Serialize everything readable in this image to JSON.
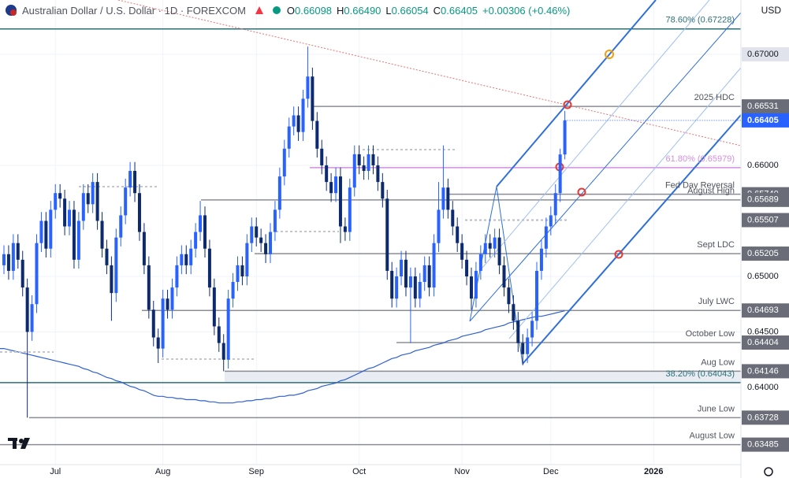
{
  "chart_data": {
    "type": "candlestick",
    "header": {
      "title": "Australian Dollar / U.S. Dollar · 1D · FOREXCOM",
      "ohlc": [
        {
          "key": "O",
          "value": "0.66098"
        },
        {
          "key": "H",
          "value": "0.66490"
        },
        {
          "key": "L",
          "value": "0.66054"
        },
        {
          "key": "C",
          "value": "0.66405"
        }
      ],
      "change": "+0.00306 (+0.46%)"
    },
    "currency": "USD",
    "categories": [
      null,
      null,
      null,
      null,
      null,
      null,
      null,
      null,
      null,
      null,
      null,
      "Jul",
      null,
      null,
      null,
      null,
      null,
      null,
      null,
      null,
      null,
      null,
      null,
      null,
      null,
      null,
      null,
      null,
      null,
      null,
      null,
      null,
      null,
      null,
      "Aug",
      null,
      null,
      null,
      null,
      null,
      null,
      null,
      null,
      null,
      null,
      null,
      null,
      null,
      null,
      null,
      null,
      null,
      null,
      null,
      "Sep",
      null,
      null,
      null,
      null,
      null,
      null,
      null,
      null,
      null,
      null,
      null,
      null,
      null,
      null,
      null,
      null,
      null,
      null,
      null,
      null,
      null,
      "Oct",
      null,
      null,
      null,
      null,
      null,
      null,
      null,
      null,
      null,
      null,
      null,
      null,
      null,
      null,
      null,
      null,
      null,
      null,
      null,
      null,
      null,
      "Nov",
      null,
      null,
      null,
      null,
      null,
      null,
      null,
      null,
      null,
      null,
      null,
      null,
      null,
      null,
      null,
      null,
      null,
      null,
      "Dec",
      null,
      null,
      null
    ],
    "next_period_label": "2026",
    "open": [
      0.651,
      0.652,
      0.6505,
      0.653,
      0.6515,
      0.649,
      0.645,
      0.6475,
      0.653,
      0.655,
      0.6525,
      0.656,
      0.6575,
      0.657,
      0.6545,
      0.656,
      0.6515,
      0.655,
      0.6575,
      0.6565,
      0.6585,
      0.655,
      0.6525,
      0.651,
      0.6485,
      0.6535,
      0.6555,
      0.658,
      0.6595,
      0.6575,
      0.654,
      0.651,
      0.647,
      0.6445,
      0.6435,
      0.648,
      0.647,
      0.649,
      0.651,
      0.652,
      0.651,
      0.6525,
      0.654,
      0.6555,
      0.6525,
      0.649,
      0.6455,
      0.644,
      0.6425,
      0.648,
      0.6495,
      0.651,
      0.65,
      0.653,
      0.6545,
      0.6535,
      0.653,
      0.652,
      0.654,
      0.656,
      0.659,
      0.6615,
      0.6635,
      0.6645,
      0.663,
      0.666,
      0.668,
      0.664,
      0.6615,
      0.66,
      0.6585,
      0.6575,
      0.659,
      0.6545,
      0.654,
      0.658,
      0.661,
      0.66,
      0.6595,
      0.661,
      0.66,
      0.6585,
      0.657,
      0.6505,
      0.648,
      0.65,
      0.6515,
      0.649,
      0.65,
      0.648,
      0.6495,
      0.651,
      0.649,
      0.653,
      0.656,
      0.658,
      0.656,
      0.6545,
      0.653,
      0.6515,
      0.65,
      0.648,
      0.6505,
      0.652,
      0.653,
      0.6525,
      0.6535,
      0.651,
      0.649,
      0.6475,
      0.646,
      0.644,
      0.643,
      0.6445,
      0.646,
      0.6505,
      0.6525,
      0.6545,
      0.6555,
      0.6575,
      0.66098
    ],
    "high": [
      0.6528,
      0.6528,
      0.6538,
      0.6538,
      0.6523,
      0.6498,
      0.6483,
      0.6538,
      0.6558,
      0.6558,
      0.6568,
      0.6583,
      0.6583,
      0.6578,
      0.6568,
      0.6568,
      0.6558,
      0.6583,
      0.6583,
      0.6593,
      0.6593,
      0.6558,
      0.6533,
      0.6518,
      0.6543,
      0.6563,
      0.6588,
      0.6603,
      0.6603,
      0.6583,
      0.6548,
      0.6518,
      0.6478,
      0.6453,
      0.6488,
      0.6488,
      0.6498,
      0.6518,
      0.6528,
      0.6528,
      0.6533,
      0.6548,
      0.6568,
      0.6563,
      0.6533,
      0.6498,
      0.6463,
      0.6448,
      0.6488,
      0.6503,
      0.6518,
      0.6518,
      0.6538,
      0.6553,
      0.6553,
      0.6543,
      0.6538,
      0.6548,
      0.6568,
      0.6598,
      0.6623,
      0.6643,
      0.6653,
      0.6653,
      0.6668,
      0.6707,
      0.6688,
      0.6648,
      0.6623,
      0.6608,
      0.6593,
      0.6598,
      0.6598,
      0.6553,
      0.6588,
      0.6618,
      0.6618,
      0.6608,
      0.6618,
      0.6618,
      0.6608,
      0.6593,
      0.6578,
      0.6513,
      0.6508,
      0.6523,
      0.6523,
      0.6508,
      0.6508,
      0.6503,
      0.6518,
      0.6518,
      0.6538,
      0.6585,
      0.6618,
      0.6588,
      0.6568,
      0.6553,
      0.6538,
      0.6523,
      0.6508,
      0.6513,
      0.6528,
      0.6538,
      0.6538,
      0.6543,
      0.6543,
      0.6518,
      0.6498,
      0.6483,
      0.6468,
      0.6448,
      0.6453,
      0.6468,
      0.6513,
      0.6533,
      0.6553,
      0.6563,
      0.6583,
      0.6615,
      0.6649
    ],
    "low": [
      0.6502,
      0.6497,
      0.6497,
      0.6507,
      0.6482,
      0.63728,
      0.6442,
      0.6467,
      0.6522,
      0.6517,
      0.6517,
      0.6552,
      0.6562,
      0.6537,
      0.6537,
      0.6507,
      0.6507,
      0.6542,
      0.6557,
      0.6557,
      0.6542,
      0.6517,
      0.6502,
      0.646,
      0.6477,
      0.6527,
      0.6547,
      0.6572,
      0.6567,
      0.6532,
      0.6502,
      0.6462,
      0.6437,
      0.6422,
      0.6427,
      0.6462,
      0.6462,
      0.6482,
      0.6502,
      0.6502,
      0.6502,
      0.6517,
      0.6532,
      0.6517,
      0.6482,
      0.6447,
      0.6432,
      0.64146,
      0.6417,
      0.6472,
      0.6487,
      0.6492,
      0.6492,
      0.6522,
      0.6527,
      0.6522,
      0.6512,
      0.6512,
      0.6532,
      0.6552,
      0.6582,
      0.6607,
      0.6627,
      0.6622,
      0.6622,
      0.6652,
      0.6632,
      0.6607,
      0.6592,
      0.6577,
      0.6567,
      0.6567,
      0.653,
      0.6532,
      0.6532,
      0.6572,
      0.6592,
      0.6587,
      0.6587,
      0.6592,
      0.6577,
      0.6562,
      0.6497,
      0.6472,
      0.6472,
      0.6492,
      0.6482,
      0.644,
      0.6472,
      0.6472,
      0.6487,
      0.6482,
      0.6482,
      0.6522,
      0.6552,
      0.6552,
      0.6537,
      0.6522,
      0.6507,
      0.6492,
      0.647,
      0.6472,
      0.6497,
      0.6512,
      0.6517,
      0.6517,
      0.6502,
      0.6482,
      0.6467,
      0.6452,
      0.6432,
      0.642,
      0.6422,
      0.6437,
      0.6452,
      0.6497,
      0.6517,
      0.6537,
      0.6547,
      0.6567,
      0.66054
    ],
    "close": [
      0.652,
      0.6505,
      0.653,
      0.6515,
      0.649,
      0.645,
      0.6475,
      0.653,
      0.655,
      0.6525,
      0.656,
      0.6575,
      0.657,
      0.6545,
      0.656,
      0.6515,
      0.655,
      0.6575,
      0.6565,
      0.6585,
      0.655,
      0.6525,
      0.651,
      0.6485,
      0.6535,
      0.6555,
      0.658,
      0.6595,
      0.6575,
      0.654,
      0.651,
      0.647,
      0.6445,
      0.6435,
      0.648,
      0.647,
      0.649,
      0.651,
      0.652,
      0.651,
      0.6525,
      0.654,
      0.6555,
      0.6525,
      0.649,
      0.6455,
      0.644,
      0.6425,
      0.648,
      0.6495,
      0.651,
      0.65,
      0.653,
      0.6545,
      0.6535,
      0.653,
      0.652,
      0.654,
      0.656,
      0.659,
      0.6615,
      0.6635,
      0.6645,
      0.663,
      0.666,
      0.668,
      0.664,
      0.6615,
      0.66,
      0.6585,
      0.6575,
      0.659,
      0.6545,
      0.654,
      0.658,
      0.661,
      0.66,
      0.6595,
      0.661,
      0.66,
      0.6585,
      0.657,
      0.6505,
      0.648,
      0.65,
      0.6515,
      0.649,
      0.65,
      0.648,
      0.6495,
      0.651,
      0.649,
      0.653,
      0.656,
      0.658,
      0.656,
      0.6545,
      0.653,
      0.6515,
      0.65,
      0.648,
      0.6505,
      0.652,
      0.653,
      0.6525,
      0.6535,
      0.651,
      0.649,
      0.6475,
      0.646,
      0.644,
      0.643,
      0.6445,
      0.646,
      0.6505,
      0.6525,
      0.6545,
      0.6555,
      0.6575,
      0.66098,
      0.66405
    ],
    "up_color": "#2962ff",
    "down_color": "#0d2a6e",
    "ma": {
      "color": "#2f5fd0",
      "values": [
        0.6435,
        0.6434,
        0.6433,
        0.6432,
        0.6431,
        0.643,
        0.6429,
        0.6428,
        0.6427,
        0.6426,
        0.6425,
        0.6424,
        0.6423,
        0.6422,
        0.6421,
        0.642,
        0.6419,
        0.6417,
        0.6416,
        0.6414,
        0.6413,
        0.6411,
        0.6409,
        0.6408,
        0.6406,
        0.6405,
        0.6403,
        0.6401,
        0.64,
        0.6398,
        0.6397,
        0.6395,
        0.6393,
        0.6392,
        0.6392,
        0.6391,
        0.6391,
        0.639,
        0.639,
        0.6389,
        0.6389,
        0.6389,
        0.6388,
        0.6388,
        0.6387,
        0.6387,
        0.6386,
        0.6386,
        0.6386,
        0.6386,
        0.6387,
        0.6387,
        0.6388,
        0.6388,
        0.6389,
        0.6389,
        0.639,
        0.639,
        0.6391,
        0.6392,
        0.6392,
        0.6393,
        0.6393,
        0.6394,
        0.6395,
        0.6397,
        0.6398,
        0.6399,
        0.6401,
        0.6402,
        0.6403,
        0.6404,
        0.6406,
        0.6407,
        0.6409,
        0.6411,
        0.6413,
        0.6415,
        0.6417,
        0.6418,
        0.642,
        0.6422,
        0.6424,
        0.6426,
        0.6427,
        0.6429,
        0.643,
        0.6431,
        0.6433,
        0.6434,
        0.6435,
        0.6436,
        0.6438,
        0.6439,
        0.644,
        0.6442,
        0.6443,
        0.6444,
        0.6446,
        0.6447,
        0.6448,
        0.6449,
        0.645,
        0.6452,
        0.6453,
        0.6454,
        0.6455,
        0.6456,
        0.6458,
        0.6459,
        0.646,
        0.6461,
        0.6462,
        0.6463,
        0.6464,
        0.6464,
        0.6465,
        0.6466,
        0.6467,
        0.6468,
        0.6469
      ]
    },
    "ylim": [
      0.63305,
      0.67489
    ],
    "yticks": [
      {
        "value": 0.64,
        "label": "0.64000"
      },
      {
        "value": 0.645,
        "label": "0.64500"
      },
      {
        "value": 0.65,
        "label": "0.65000"
      },
      {
        "value": 0.66,
        "label": "0.66000"
      },
      {
        "value": 0.67,
        "label": "0.67000"
      }
    ],
    "highlight_tick": 4,
    "levels": [
      {
        "name": "78.60% (0.67228)",
        "value": 0.67228,
        "color": "#2b6f78"
      },
      {
        "name": "2025 HDC",
        "value": 0.66531,
        "color": "#8a8d94",
        "boxed": true
      },
      {
        "name": "61.80% (0.65979)",
        "value": 0.65979,
        "color": "#d48ee0"
      },
      {
        "name": "Fed Day Reversal",
        "value": 0.6574,
        "value_label": "0.65740",
        "color": "#8a8d94",
        "boxed": true
      },
      {
        "name": "August High",
        "value": 0.65689,
        "color": "#8a8d94",
        "boxed": true
      },
      {
        "value": 0.65507,
        "color": "#b8bbc2",
        "boxed": true,
        "dotted": true
      },
      {
        "name": "Sept LDC",
        "value": 0.65205,
        "color": "#8a8d94",
        "boxed": true
      },
      {
        "name": "July LWC",
        "value": 0.64693,
        "color": "#8a8d94",
        "boxed": true
      },
      {
        "name": "October Low",
        "value": 0.64404,
        "color": "#8a8d94",
        "boxed": true
      },
      {
        "name": "Aug Low",
        "value": 0.64146,
        "color": "#8a8d94",
        "boxed": true
      },
      {
        "name": "38.20% (0.64043)",
        "value": 0.64043,
        "color": "#2b6f78"
      },
      {
        "name": "June Low",
        "value": 0.63728,
        "color": "#8a8d94",
        "boxed": true
      },
      {
        "name": "August Low",
        "value": 0.63485,
        "color": "#8a8d94",
        "boxed": true
      }
    ],
    "last_price_color": "#2962ff"
  }
}
